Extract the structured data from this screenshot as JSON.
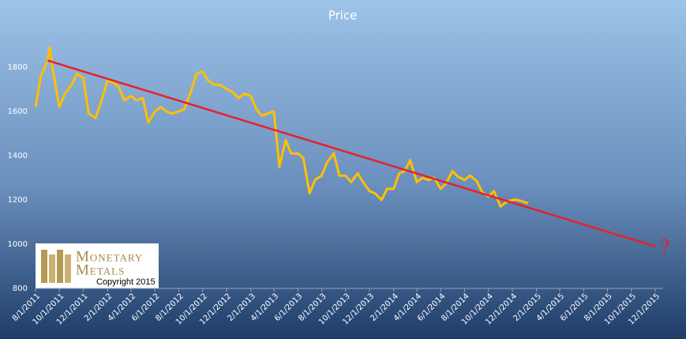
{
  "chart_data": {
    "type": "line",
    "title": "Price",
    "xlim": [
      "8/1/2011",
      "12/1/2015"
    ],
    "xticks": [
      "8/1/2011",
      "10/1/2011",
      "12/1/2011",
      "2/1/2012",
      "4/1/2012",
      "6/1/2012",
      "8/1/2012",
      "10/1/2012",
      "12/1/2012",
      "2/1/2013",
      "4/1/2013",
      "6/1/2013",
      "8/1/2013",
      "10/1/2013",
      "12/1/2013",
      "2/1/2014",
      "4/1/2014",
      "6/1/2014",
      "8/1/2014",
      "10/1/2014",
      "12/1/2014",
      "2/1/2015",
      "4/1/2015",
      "6/1/2015",
      "8/1/2015",
      "10/1/2015",
      "12/1/2015"
    ],
    "ylim": [
      800,
      1800
    ],
    "yticks": [
      800,
      1000,
      1200,
      1400,
      1600,
      1800
    ],
    "series": [
      {
        "color": "#ffc000",
        "x": [
          "8/1/2011",
          "8/15/2011",
          "9/1/2011",
          "9/6/2011",
          "9/15/2011",
          "10/1/2011",
          "10/15/2011",
          "11/1/2011",
          "11/15/2011",
          "12/1/2011",
          "12/15/2011",
          "1/1/2012",
          "1/15/2012",
          "2/1/2012",
          "2/15/2012",
          "3/1/2012",
          "3/15/2012",
          "4/1/2012",
          "4/15/2012",
          "5/1/2012",
          "5/15/2012",
          "6/1/2012",
          "6/15/2012",
          "7/1/2012",
          "7/15/2012",
          "8/1/2012",
          "8/15/2012",
          "9/1/2012",
          "9/15/2012",
          "10/1/2012",
          "10/15/2012",
          "11/1/2012",
          "11/15/2012",
          "12/1/2012",
          "12/15/2012",
          "1/1/2013",
          "1/15/2013",
          "2/1/2013",
          "2/15/2013",
          "3/1/2013",
          "3/15/2013",
          "4/1/2013",
          "4/15/2013",
          "5/1/2013",
          "5/15/2013",
          "6/1/2013",
          "6/15/2013",
          "7/1/2013",
          "7/15/2013",
          "8/1/2013",
          "8/15/2013",
          "9/1/2013",
          "9/15/2013",
          "10/1/2013",
          "10/15/2013",
          "11/1/2013",
          "11/15/2013",
          "12/1/2013",
          "12/15/2013",
          "1/1/2014",
          "1/15/2014",
          "2/1/2014",
          "2/15/2014",
          "3/1/2014",
          "3/15/2014",
          "4/1/2014",
          "4/15/2014",
          "5/1/2014",
          "5/15/2014",
          "6/1/2014",
          "6/15/2014",
          "7/1/2014",
          "7/15/2014",
          "8/1/2014",
          "8/15/2014",
          "9/1/2014",
          "9/15/2014",
          "10/1/2014",
          "10/15/2014",
          "11/1/2014",
          "11/15/2014",
          "12/1/2014",
          "12/15/2014",
          "1/1/2015",
          "1/10/2015"
        ],
        "values": [
          1620,
          1760,
          1830,
          1890,
          1780,
          1620,
          1680,
          1720,
          1770,
          1750,
          1590,
          1570,
          1640,
          1740,
          1730,
          1710,
          1650,
          1670,
          1650,
          1660,
          1550,
          1600,
          1620,
          1600,
          1590,
          1600,
          1610,
          1690,
          1770,
          1780,
          1740,
          1720,
          1720,
          1700,
          1690,
          1660,
          1680,
          1670,
          1610,
          1580,
          1590,
          1600,
          1350,
          1470,
          1410,
          1410,
          1390,
          1230,
          1290,
          1310,
          1370,
          1410,
          1310,
          1310,
          1280,
          1320,
          1280,
          1240,
          1230,
          1200,
          1250,
          1250,
          1320,
          1330,
          1380,
          1280,
          1300,
          1290,
          1300,
          1250,
          1275,
          1330,
          1305,
          1290,
          1310,
          1285,
          1235,
          1215,
          1240,
          1170,
          1190,
          1200,
          1200,
          1190,
          1185
        ]
      },
      {
        "color": "#e8202a",
        "x": [
          "9/1/2011",
          "12/1/2015"
        ],
        "values": [
          1830,
          990
        ]
      }
    ],
    "annotation": "?",
    "logo": {
      "line1": "Monetary",
      "line2": "Metals",
      "copyright": "Copyright 2015"
    }
  }
}
